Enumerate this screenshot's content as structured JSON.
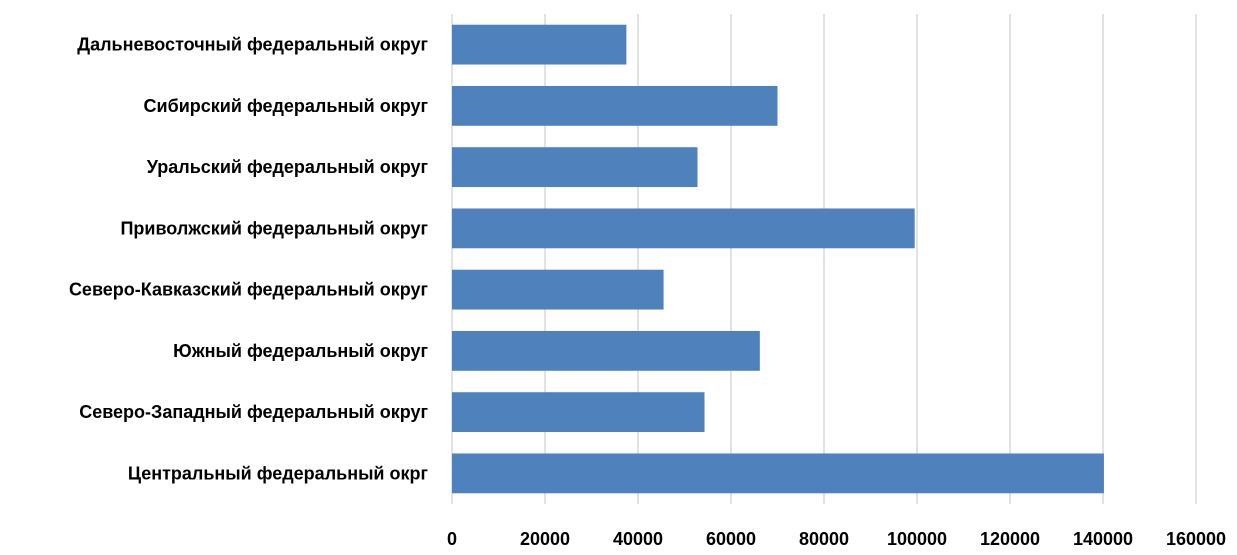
{
  "chart_data": {
    "type": "bar",
    "orientation": "horizontal",
    "categories": [
      "Дальневосточный федеральный округ",
      "Сибирский федеральный округ",
      "Уральский федеральный округ",
      "Приволжский федеральный округ",
      "Северо-Кавказский федеральный округ",
      "Южный федеральный округ",
      "Северо-Западный федеральный округ",
      "Центральный федеральный окрг"
    ],
    "values": [
      37500,
      70000,
      52800,
      99500,
      45500,
      66200,
      54300,
      140200
    ],
    "xlim": [
      0,
      160000
    ],
    "x_ticks": [
      0,
      20000,
      40000,
      60000,
      80000,
      100000,
      120000,
      140000,
      160000
    ],
    "x_tick_labels": [
      "0",
      "20000",
      "40000",
      "60000",
      "80000",
      "100000",
      "120000",
      "140000",
      "160000"
    ],
    "title": "",
    "xlabel": "",
    "ylabel": "",
    "grid": "vertical",
    "legend": "none",
    "bar_color": "#4f81bd",
    "grid_color": "#d9d9d9"
  }
}
